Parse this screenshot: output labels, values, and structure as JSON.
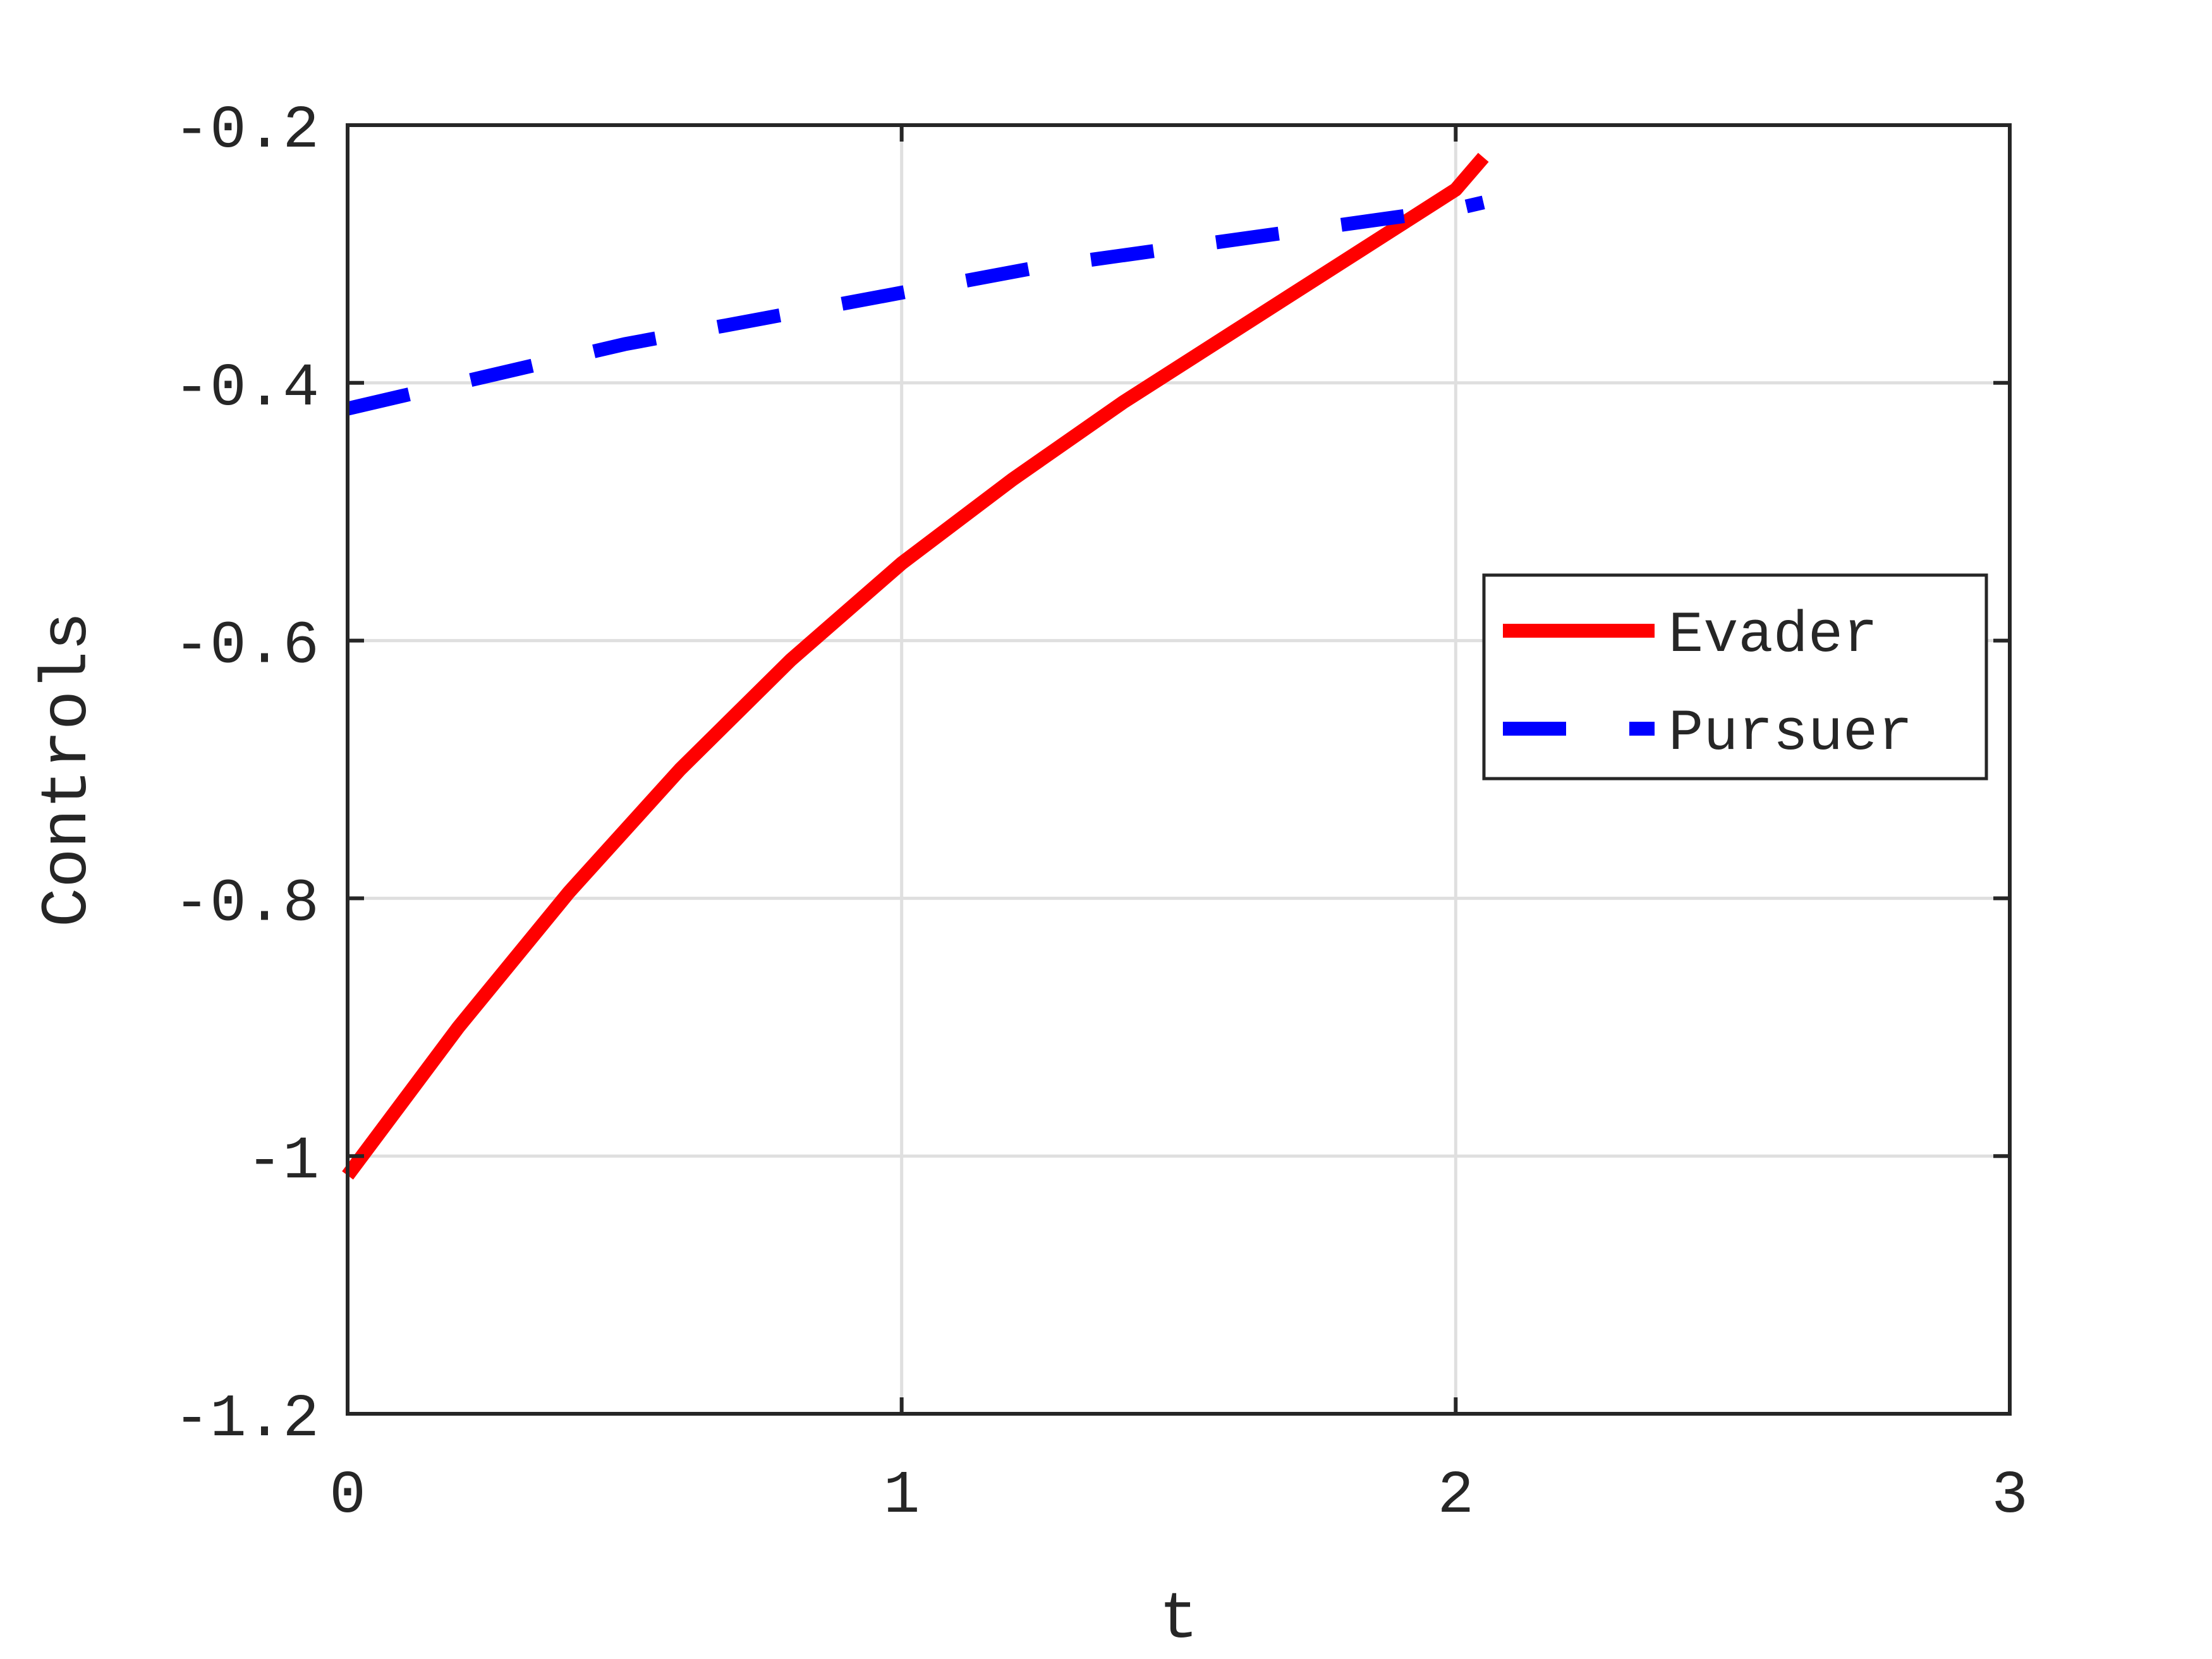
{
  "chart_data": {
    "type": "line",
    "title": "",
    "xlabel": "t",
    "ylabel": "Controls",
    "xlim": [
      0,
      3
    ],
    "ylim": [
      -1.2,
      -0.2
    ],
    "xticks": [
      0,
      1,
      2,
      3
    ],
    "xtick_labels": [
      "0",
      "1",
      "2",
      "3"
    ],
    "yticks": [
      -1.2,
      -1,
      -0.8,
      -0.6,
      -0.4,
      -0.2
    ],
    "ytick_labels": [
      "-1.2",
      "-1",
      "-0.8",
      "-0.6",
      "-0.4",
      "-0.2"
    ],
    "grid": true,
    "legend_position": "right",
    "series": [
      {
        "name": "Evader",
        "color": "#ff0000",
        "line_style": "solid",
        "x": [
          0,
          0.2,
          0.4,
          0.6,
          0.8,
          1.0,
          1.2,
          1.4,
          1.6,
          1.8,
          2.0,
          2.05
        ],
        "y": [
          -1.015,
          -0.9,
          -0.795,
          -0.7,
          -0.615,
          -0.54,
          -0.475,
          -0.415,
          -0.36,
          -0.305,
          -0.25,
          -0.225
        ]
      },
      {
        "name": "Pursuer",
        "color": "#0000ff",
        "line_style": "dashed",
        "x": [
          0,
          0.25,
          0.5,
          0.75,
          1.0,
          1.25,
          1.5,
          1.75,
          2.0,
          2.05
        ],
        "y": [
          -0.42,
          -0.395,
          -0.37,
          -0.35,
          -0.33,
          -0.31,
          -0.295,
          -0.28,
          -0.265,
          -0.26
        ]
      }
    ]
  }
}
